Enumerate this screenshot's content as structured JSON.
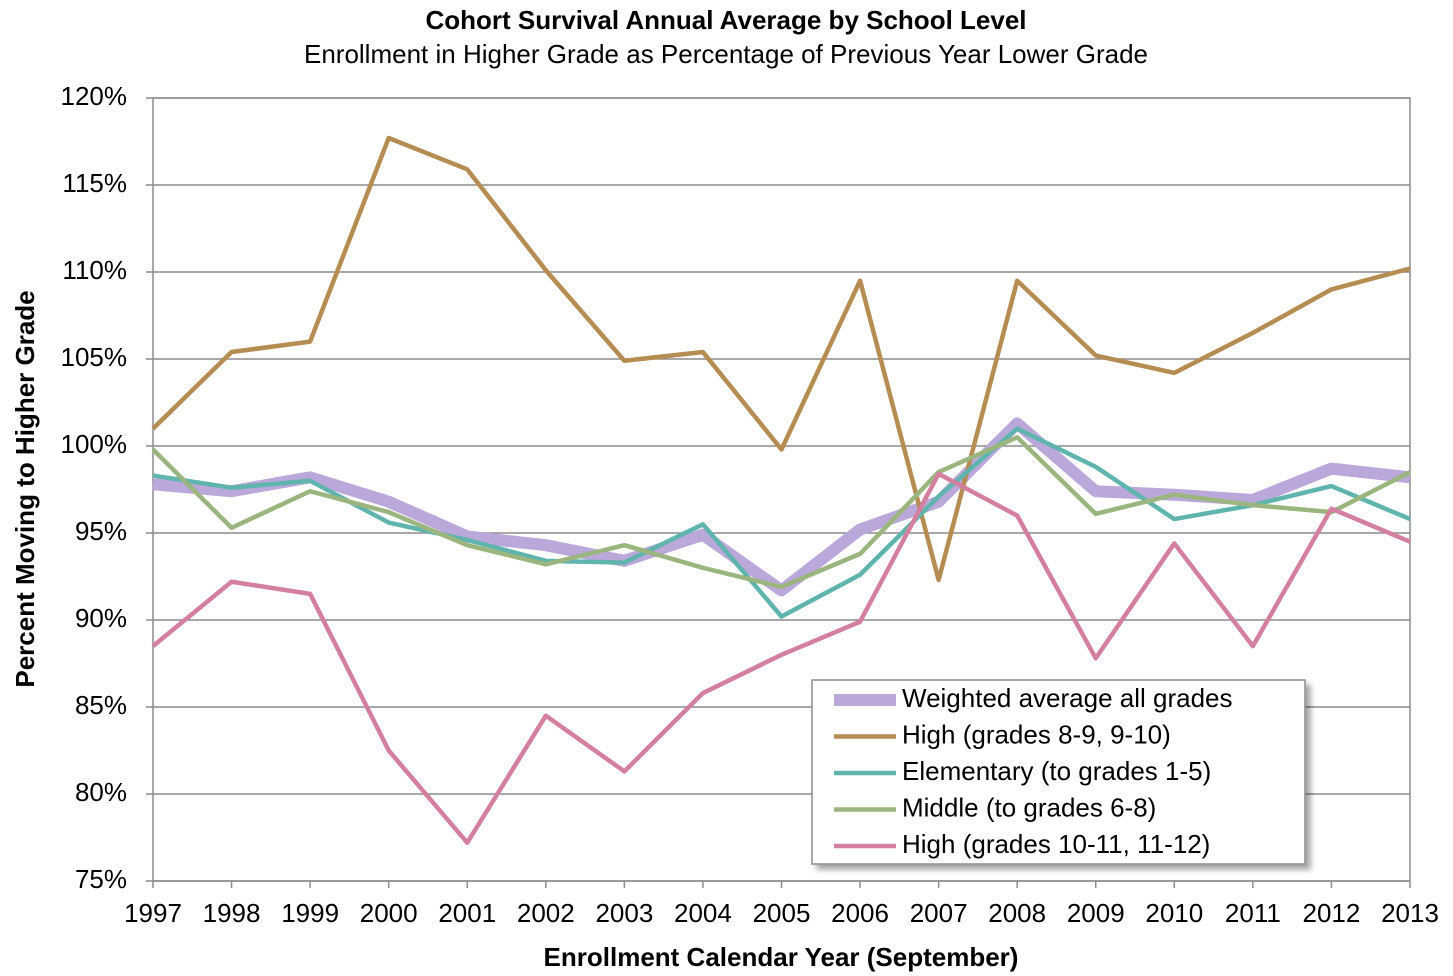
{
  "chart_data": {
    "type": "line",
    "title": "Cohort Survival Annual Average by School Level",
    "subtitle": "Enrollment in Higher Grade as Percentage of Previous Year Lower Grade",
    "x_label": "Enrollment Calendar Year (September)",
    "y_label": "Percent Moving to Higher Grade",
    "x": [
      1997,
      1998,
      1999,
      2000,
      2001,
      2002,
      2003,
      2004,
      2005,
      2006,
      2007,
      2008,
      2009,
      2010,
      2011,
      2012,
      2013
    ],
    "xlim": [
      1997,
      2013
    ],
    "xticks": [
      1997,
      1998,
      1999,
      2000,
      2001,
      2002,
      2003,
      2004,
      2005,
      2006,
      2007,
      2008,
      2009,
      2010,
      2011,
      2012,
      2013
    ],
    "ylim": [
      75,
      120
    ],
    "yticks": [
      {
        "value": 75,
        "label": "75%"
      },
      {
        "value": 80,
        "label": "80%"
      },
      {
        "value": 85,
        "label": "85%"
      },
      {
        "value": 90,
        "label": "90%"
      },
      {
        "value": 95,
        "label": "95%"
      },
      {
        "value": 100,
        "label": "100%"
      },
      {
        "value": 105,
        "label": "105%"
      },
      {
        "value": 110,
        "label": "110%"
      },
      {
        "value": 115,
        "label": "115%"
      },
      {
        "value": 120,
        "label": "120%"
      }
    ],
    "grid": true,
    "legend": "lower right",
    "series": [
      {
        "name": "Weighted average all grades",
        "color": "#bba8da",
        "values": [
          97.8,
          97.4,
          98.2,
          96.8,
          94.8,
          94.3,
          93.4,
          94.9,
          91.7,
          95.2,
          96.8,
          101.3,
          97.4,
          97.2,
          96.9,
          98.7,
          98.2
        ]
      },
      {
        "name": "High (grades 8-9, 9-10)",
        "color": "#b58c52",
        "values": [
          101.0,
          105.4,
          106.0,
          117.7,
          115.9,
          110.1,
          104.9,
          105.4,
          99.8,
          109.5,
          92.3,
          109.5,
          105.2,
          104.2,
          106.5,
          109.0,
          110.2
        ]
      },
      {
        "name": "Elementary (to grades 1-5)",
        "color": "#5fb5ad",
        "values": [
          98.3,
          97.6,
          98.0,
          95.6,
          94.6,
          93.4,
          93.3,
          95.5,
          90.2,
          92.6,
          97.1,
          101.0,
          98.8,
          95.8,
          96.6,
          97.7,
          95.8
        ]
      },
      {
        "name": "Middle (to grades 6-8)",
        "color": "#9bb57f",
        "values": [
          99.8,
          95.3,
          97.4,
          96.2,
          94.3,
          93.2,
          94.3,
          93.0,
          91.9,
          93.8,
          98.5,
          100.5,
          96.1,
          97.2,
          96.6,
          96.2,
          98.5
        ]
      },
      {
        "name": "High (grades 10-11, 11-12)",
        "color": "#d3809f",
        "values": [
          88.5,
          92.2,
          91.5,
          82.5,
          77.2,
          84.5,
          81.3,
          85.8,
          88.0,
          89.9,
          98.4,
          96.0,
          87.8,
          94.4,
          88.5,
          96.4,
          94.5
        ]
      }
    ]
  }
}
